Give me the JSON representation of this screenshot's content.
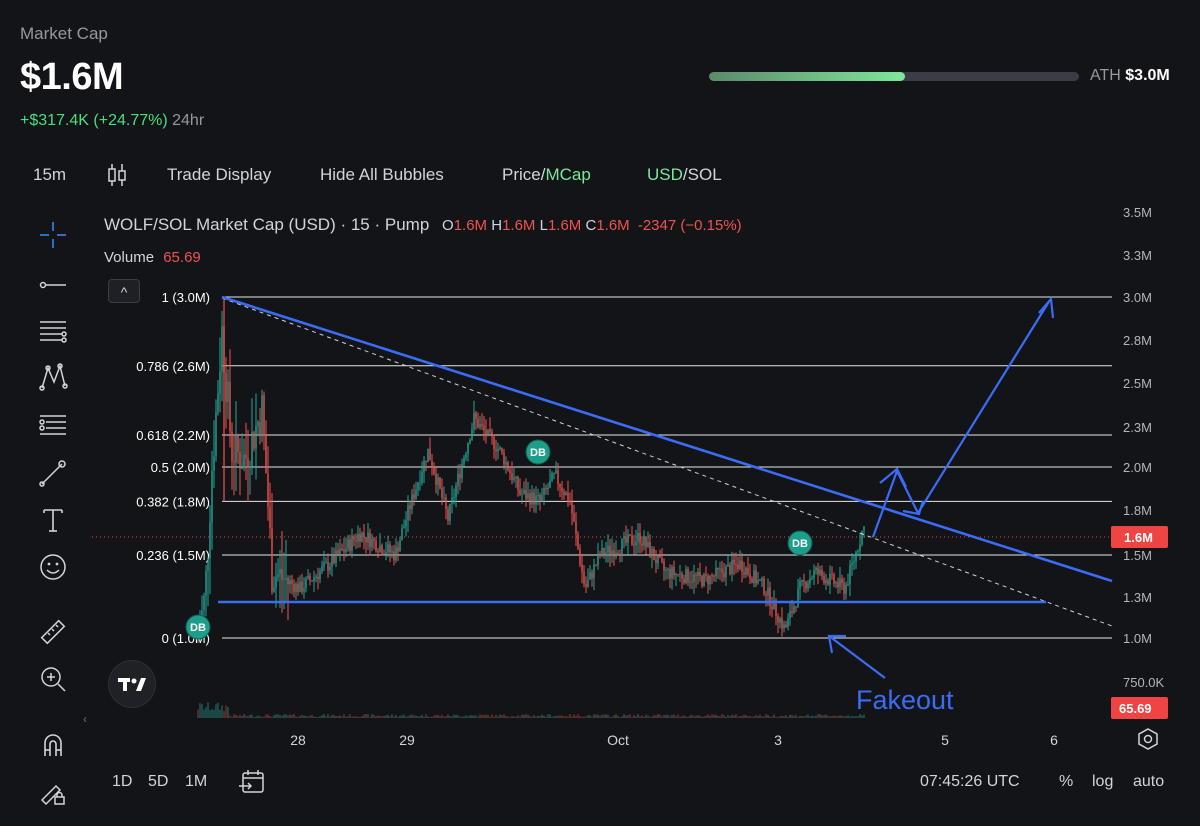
{
  "header": {
    "label": "Market Cap",
    "value": "$1.6M",
    "change": "+$317.4K (+24.77%)",
    "change_period": "24hr",
    "ath_label": "ATH",
    "ath_value": "$3.0M",
    "ath_progress": 0.53
  },
  "toolbar": {
    "interval": "15m",
    "trade_display": "Trade Display",
    "hide_bubbles": "Hide All Bubbles",
    "price_label": "Price/",
    "mcap_label": "MCap",
    "usd_label": "USD",
    "sol_label": "/SOL"
  },
  "legend": {
    "title": "WOLF/SOL Market Cap (USD) · 15 · Pump",
    "o_label": "O",
    "o_val": "1.6M",
    "h_label": "H",
    "h_val": "1.6M",
    "l_label": "L",
    "l_val": "1.6M",
    "c_label": "C",
    "c_val": "1.6M",
    "change": "-2347 (−0.15%)",
    "volume_label": "Volume",
    "volume_val": "65.69",
    "collapse_glyph": "^"
  },
  "colors": {
    "up": "#26a69a",
    "down": "#ef5350",
    "accent": "#7ee69a",
    "drawing": "#3b6cf6",
    "price_tag": "#ef4444"
  },
  "chart_data": {
    "type": "candlestick",
    "title": "WOLF/SOL Market Cap (USD) · 15 · Pump",
    "y_ticks": [
      "3.5M",
      "3.3M",
      "3.0M",
      "2.8M",
      "2.5M",
      "2.3M",
      "2.0M",
      "1.8M",
      "1.5M",
      "1.3M",
      "1.0M",
      "750.0K"
    ],
    "x_ticks": [
      "28",
      "29",
      "Oct",
      "3",
      "5",
      "6"
    ],
    "current_price_label": "1.6M",
    "current_volume_label": "65.69",
    "fib_levels": [
      {
        "label": "1 (3.0M)",
        "value": 3.0
      },
      {
        "label": "0.786 (2.6M)",
        "value": 2.6
      },
      {
        "label": "0.618 (2.2M)",
        "value": 2.2
      },
      {
        "label": "0.5 (2.0M)",
        "value": 2.0
      },
      {
        "label": "0.382 (1.8M)",
        "value": 1.8
      },
      {
        "label": "0.236 (1.5M)",
        "value": 1.5
      },
      {
        "label": "0 (1.0M)",
        "value": 1.0
      }
    ],
    "markers": [
      "DB",
      "DB",
      "DB"
    ],
    "annotation": "Fakeout"
  },
  "bottom": {
    "r1d": "1D",
    "r5d": "5D",
    "r1m": "1M",
    "time": "07:45:26 UTC",
    "pct": "%",
    "log": "log",
    "auto": "auto"
  },
  "tools": [
    "crosshair-icon",
    "trend-line-icon",
    "fib-icon",
    "pattern-icon",
    "projection-icon",
    "brush-icon",
    "text-icon",
    "emoji-icon",
    "ruler-icon",
    "zoom-icon",
    "magnet-icon",
    "lock-icon"
  ]
}
